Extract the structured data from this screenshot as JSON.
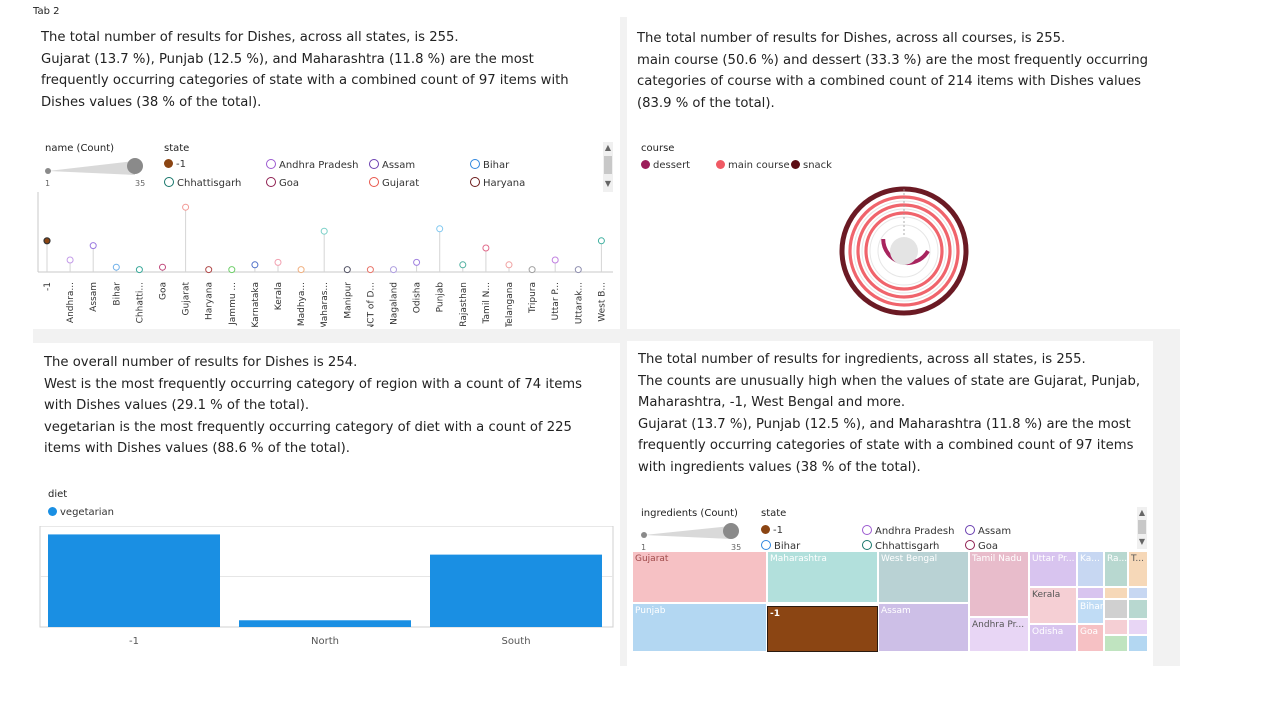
{
  "tab": "Tab 2",
  "panel1": {
    "lines": [
      "The total number of results for Dishes, across all states, is 255.",
      "Gujarat (13.7 %), Punjab (12.5 %), and Maharashtra (11.8 %) are the most frequently occurring categories of state with a combined count of 97 items with Dishes values (38 % of the total)."
    ],
    "size_legend_title": "name (Count)",
    "size_min": "1",
    "size_max": "35",
    "color_legend_title": "state",
    "legend": [
      {
        "label": "-1",
        "color": "#8b4513",
        "filled": true
      },
      {
        "label": "Andhra Pradesh",
        "color": "#9b59d0",
        "filled": false
      },
      {
        "label": "Assam",
        "color": "#6a3fb0",
        "filled": false
      },
      {
        "label": "Bihar",
        "color": "#2e86de",
        "filled": false
      },
      {
        "label": "Chhattisgarh",
        "color": "#16756a",
        "filled": false
      },
      {
        "label": "Goa",
        "color": "#8e1e50",
        "filled": false
      },
      {
        "label": "Gujarat",
        "color": "#e8554a",
        "filled": false
      },
      {
        "label": "Haryana",
        "color": "#6b1a1a",
        "filled": false
      }
    ]
  },
  "panel2": {
    "lines": [
      "The total number of results for Dishes, across all courses, is 255.",
      "main course (50.6 %) and dessert (33.3 %) are the most frequently occurring categories of course with a combined count of 214 items with Dishes values (83.9 % of the total)."
    ],
    "legend_title": "course",
    "legend": [
      {
        "label": "dessert",
        "color": "#9c1e5a"
      },
      {
        "label": "main course",
        "color": "#f05a64"
      },
      {
        "label": "snack",
        "color": "#5c0d14"
      }
    ]
  },
  "panel3": {
    "lines": [
      "The overall number of results for Dishes is 254.",
      "West is the most frequently occurring category of region with a count of 74 items with Dishes values (29.1 % of the total).",
      "vegetarian is the most frequently occurring category of diet with a count of 225 items with Dishes values (88.6 % of the total)."
    ],
    "legend_title": "diet",
    "legend": [
      {
        "label": "vegetarian",
        "color": "#1a8fe3"
      }
    ]
  },
  "panel4": {
    "lines": [
      "The total number of results for ingredients, across all states, is 255.",
      "The counts are unusually high when the values of state are Gujarat, Punjab, Maharashtra, -1, West Bengal and more.",
      "Gujarat (13.7 %), Punjab (12.5 %), and Maharashtra (11.8 %) are the most frequently occurring categories of state with a combined count of 97 items with ingredients values (38 % of the total)."
    ],
    "size_legend_title": "ingredients (Count)",
    "size_min": "1",
    "size_max": "35",
    "color_legend_title": "state",
    "legend": [
      {
        "label": "-1",
        "color": "#8b4513",
        "filled": true
      },
      {
        "label": "Andhra Pradesh",
        "color": "#9b59d0",
        "filled": false
      },
      {
        "label": "Assam",
        "color": "#6a3fb0",
        "filled": false
      },
      {
        "label": "Bihar",
        "color": "#2e86de",
        "filled": false
      },
      {
        "label": "Chhattisgarh",
        "color": "#16756a",
        "filled": false
      },
      {
        "label": "Goa",
        "color": "#8e1e50",
        "filled": false
      }
    ]
  },
  "chart_data": [
    {
      "type": "scatter",
      "title": "",
      "categories": [
        "-1",
        "Andhra...",
        "Assam",
        "Bihar",
        "Chhatti...",
        "Goa",
        "Gujarat",
        "Haryana",
        "Jammu ...",
        "Karnataka",
        "Kerala",
        "Madhya...",
        "Maharas...",
        "Manipur",
        "NCT of D...",
        "Nagaland",
        "Odisha",
        "Punjab",
        "Rajasthan",
        "Tamil N...",
        "Telangana",
        "Tripura",
        "Uttar P...",
        "Uttarak...",
        "West B..."
      ],
      "values": [
        13,
        5,
        11,
        2,
        1,
        2,
        27,
        1,
        1,
        3,
        4,
        1,
        17,
        1,
        1,
        1,
        4,
        18,
        3,
        10,
        3,
        1,
        5,
        1,
        13
      ],
      "colors": [
        "#8b4513",
        "#c39be8",
        "#9b7ae0",
        "#6fb0ea",
        "#3aa99a",
        "#c04a7c",
        "#f29a96",
        "#b04a4a",
        "#6fcf6a",
        "#4f6fc8",
        "#f2a0b0",
        "#f0b080",
        "#7ad0c8",
        "#555566",
        "#e8756a",
        "#b0a0e0",
        "#a080e0",
        "#80c8f0",
        "#50b0a0",
        "#e06a8a",
        "#f0a0a0",
        "#a0a0a0",
        "#c080e0",
        "#9090b0",
        "#40b0a0"
      ],
      "ylim": [
        0,
        30
      ]
    },
    {
      "type": "pie",
      "title": "",
      "categories": [
        "main course",
        "dessert",
        "snack"
      ],
      "values": [
        50.6,
        33.3,
        16.1
      ]
    },
    {
      "type": "bar",
      "title": "",
      "categories": [
        "-1",
        "North",
        "South"
      ],
      "series": [
        {
          "name": "vegetarian",
          "values": [
            55,
            4,
            43
          ]
        }
      ],
      "ylim": [
        0,
        60
      ]
    },
    {
      "type": "heatmap",
      "title": "",
      "categories": [
        "Gujarat",
        "Punjab",
        "Maharashtra",
        "-1",
        "West Bengal",
        "Assam",
        "Tamil Nadu",
        "Andhra Pr...",
        "Uttar Pr...",
        "Kerala",
        "Odisha",
        "Ka...",
        "Ra...",
        "T...",
        "Bihar",
        "Goa"
      ],
      "values": [
        35,
        32,
        30,
        28,
        24,
        22,
        10,
        8,
        6,
        5,
        4,
        3,
        3,
        2,
        2,
        2
      ],
      "colors": [
        "#f6c1c4",
        "#b3d7f2",
        "#b2e0dc",
        "#8b4513",
        "#b9d2d4",
        "#cdbfe7",
        "#e8bccb",
        "#e8d6f5",
        "#d8c4ef",
        "#f5cfd4",
        "#d8c4ef",
        "#c7d7f2",
        "#b8d8d0",
        "#f6d8b8",
        "#c0dcf5",
        "#f6c1c4"
      ]
    }
  ]
}
